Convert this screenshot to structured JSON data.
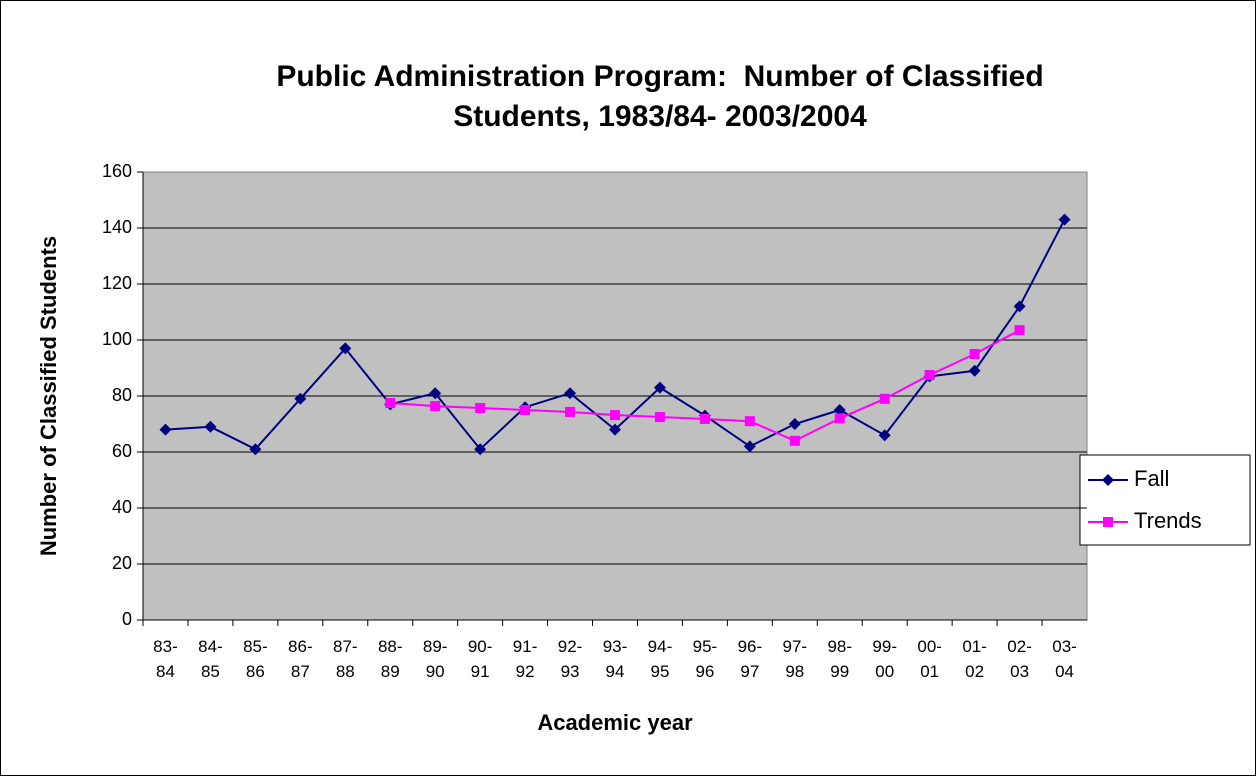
{
  "chart_data": {
    "type": "line",
    "title": [
      "Public Administration Program:  Number of Classified",
      "Students, 1983/84- 2003/2004"
    ],
    "x_label": "Academic year",
    "y_label": "Number of Classified Students",
    "categories": [
      "83-84",
      "84-85",
      "85-86",
      "86-87",
      "87-88",
      "88-89",
      "89-90",
      "90-91",
      "91-92",
      "92-93",
      "93-94",
      "94-95",
      "95-96",
      "96-97",
      "97-98",
      "98-99",
      "99-00",
      "00-01",
      "01-02",
      "02-03",
      "03-04"
    ],
    "series": [
      {
        "name": "Fall",
        "color": "#000080",
        "marker": "diamond",
        "values": [
          68,
          69,
          61,
          79,
          97,
          77,
          81,
          61,
          76,
          81,
          68,
          83,
          73,
          62,
          70,
          75,
          66,
          87,
          89,
          112,
          143
        ]
      },
      {
        "name": "Trends",
        "color": "#ff00ff",
        "marker": "square",
        "values": [
          null,
          null,
          null,
          null,
          null,
          77.5,
          76.4,
          75.7,
          75,
          74.3,
          73.2,
          72.5,
          71.8,
          71,
          64,
          72,
          79,
          87.5,
          95,
          103.5,
          null
        ]
      }
    ],
    "ylim": [
      0,
      160
    ],
    "yticks": [
      0,
      20,
      40,
      60,
      80,
      100,
      120,
      140,
      160
    ],
    "grid": true,
    "legend": "right"
  }
}
